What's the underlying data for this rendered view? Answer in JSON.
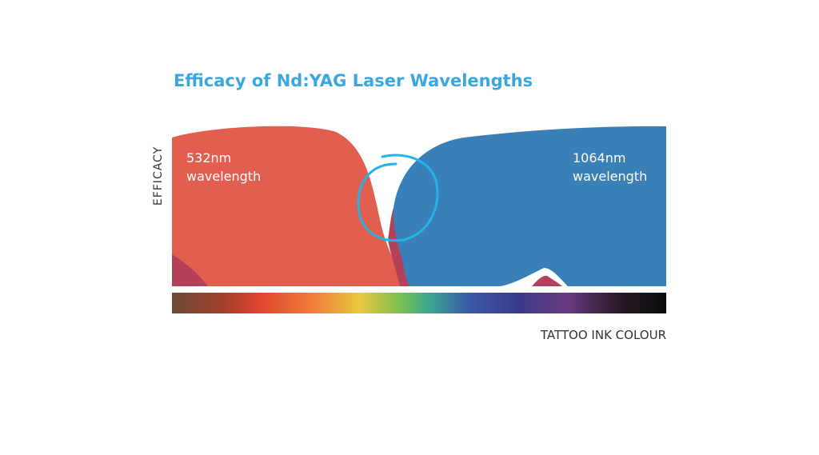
{
  "title": "Efficacy of Nd:YAG Laser Wavelengths",
  "y_axis_label": "EFFICACY",
  "x_axis_label": "TATTOO INK COLOUR",
  "labels": [
    {
      "lines": [
        "532nm",
        "wavelength"
      ]
    },
    {
      "lines": [
        "1064nm",
        "wavelength"
      ]
    }
  ]
}
